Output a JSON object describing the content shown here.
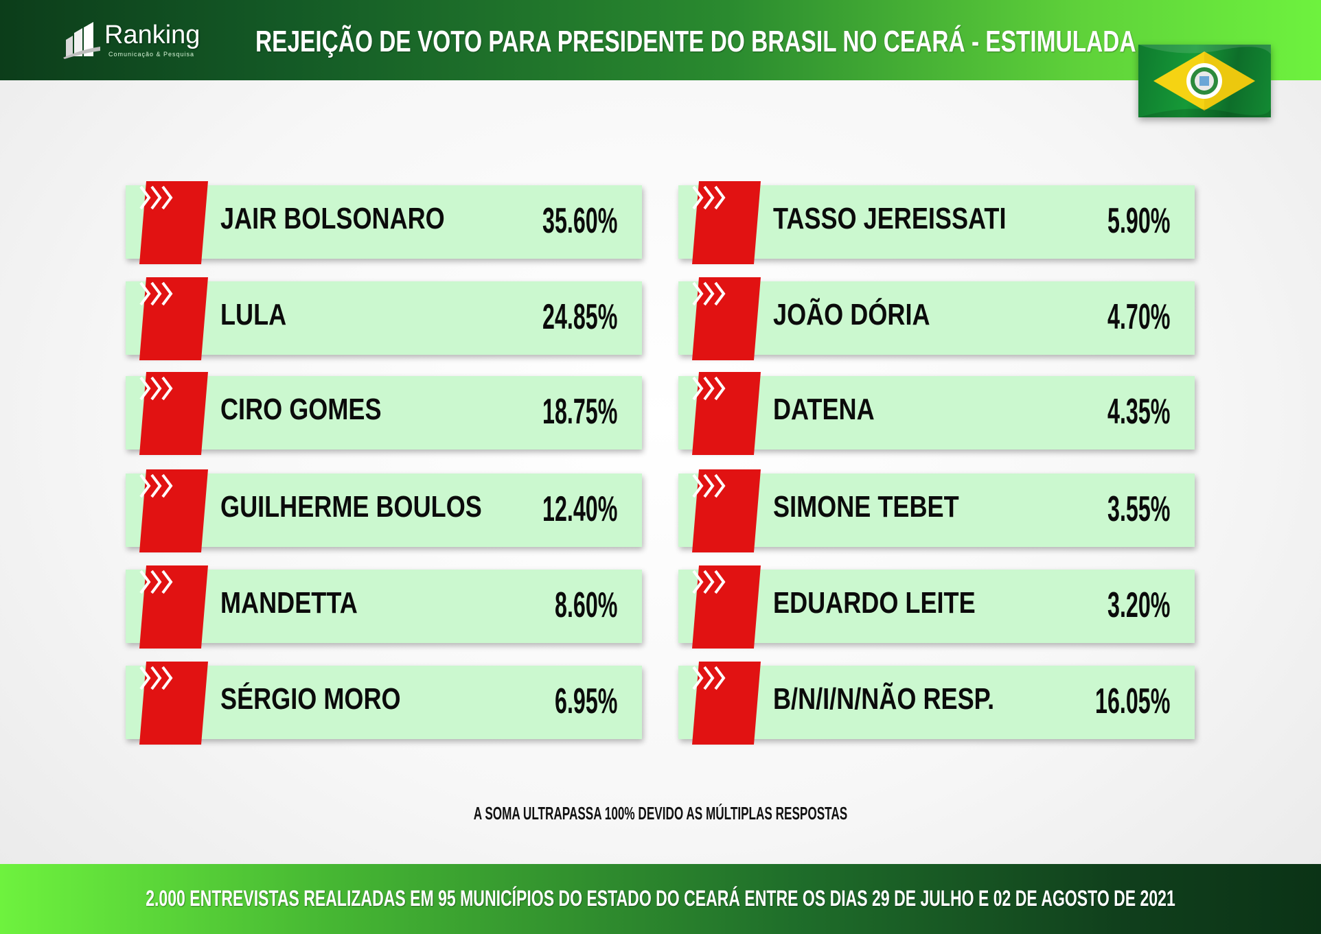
{
  "header": {
    "logo_text": "Ranking",
    "logo_tagline": "Comunicação & Pesquisa",
    "title": "REJEIÇÃO DE VOTO PARA PRESIDENTE DO BRASIL NO CEARÁ - ESTIMULADA"
  },
  "colors": {
    "card_background": "#cbf8cf",
    "arrow_tab": "#e11212",
    "header_dark": "#0c3d1a",
    "header_light": "#6ef23e"
  },
  "chart_data": {
    "type": "table",
    "title": "REJEIÇÃO DE VOTO PARA PRESIDENTE DO BRASIL NO CEARÁ - ESTIMULADA",
    "unit": "%",
    "items": [
      {
        "name": "JAIR BOLSONARO",
        "value": 35.6,
        "label": "35.60%"
      },
      {
        "name": "LULA",
        "value": 24.85,
        "label": "24.85%"
      },
      {
        "name": "CIRO GOMES",
        "value": 18.75,
        "label": "18.75%"
      },
      {
        "name": "GUILHERME BOULOS",
        "value": 12.4,
        "label": "12.40%"
      },
      {
        "name": "MANDETTA",
        "value": 8.6,
        "label": "8.60%"
      },
      {
        "name": "SÉRGIO MORO",
        "value": 6.95,
        "label": "6.95%"
      },
      {
        "name": "TASSO JEREISSATI",
        "value": 5.9,
        "label": "5.90%"
      },
      {
        "name": "JOÃO DÓRIA",
        "value": 4.7,
        "label": "4.70%"
      },
      {
        "name": "DATENA",
        "value": 4.35,
        "label": "4.35%"
      },
      {
        "name": "SIMONE TEBET",
        "value": 3.55,
        "label": "3.55%"
      },
      {
        "name": "EDUARDO LEITE",
        "value": 3.2,
        "label": "3.20%"
      },
      {
        "name": "B/N/I/N/NÃO RESP.",
        "value": 16.05,
        "label": "16.05%"
      }
    ]
  },
  "footnote": "A SOMA ULTRAPASSA 100% DEVIDO AS MÚLTIPLAS RESPOSTAS",
  "footer": {
    "text": "2.000 ENTREVISTAS REALIZADAS EM 95 MUNICÍPIOS DO ESTADO DO CEARÁ ENTRE OS DIAS 29 DE JULHO E 02 DE AGOSTO DE 2021"
  }
}
